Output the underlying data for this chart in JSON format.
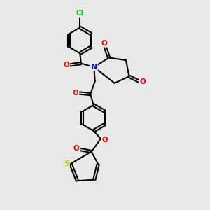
{
  "background_color": "#e8e8e8",
  "bond_color": "#000000",
  "atom_colors": {
    "N": "#0000ff",
    "O": "#ff0000",
    "S": "#cccc00",
    "Cl": "#00cc00",
    "C": "#000000"
  },
  "bond_width": 1.5,
  "figsize": [
    3.0,
    3.0
  ],
  "dpi": 100
}
